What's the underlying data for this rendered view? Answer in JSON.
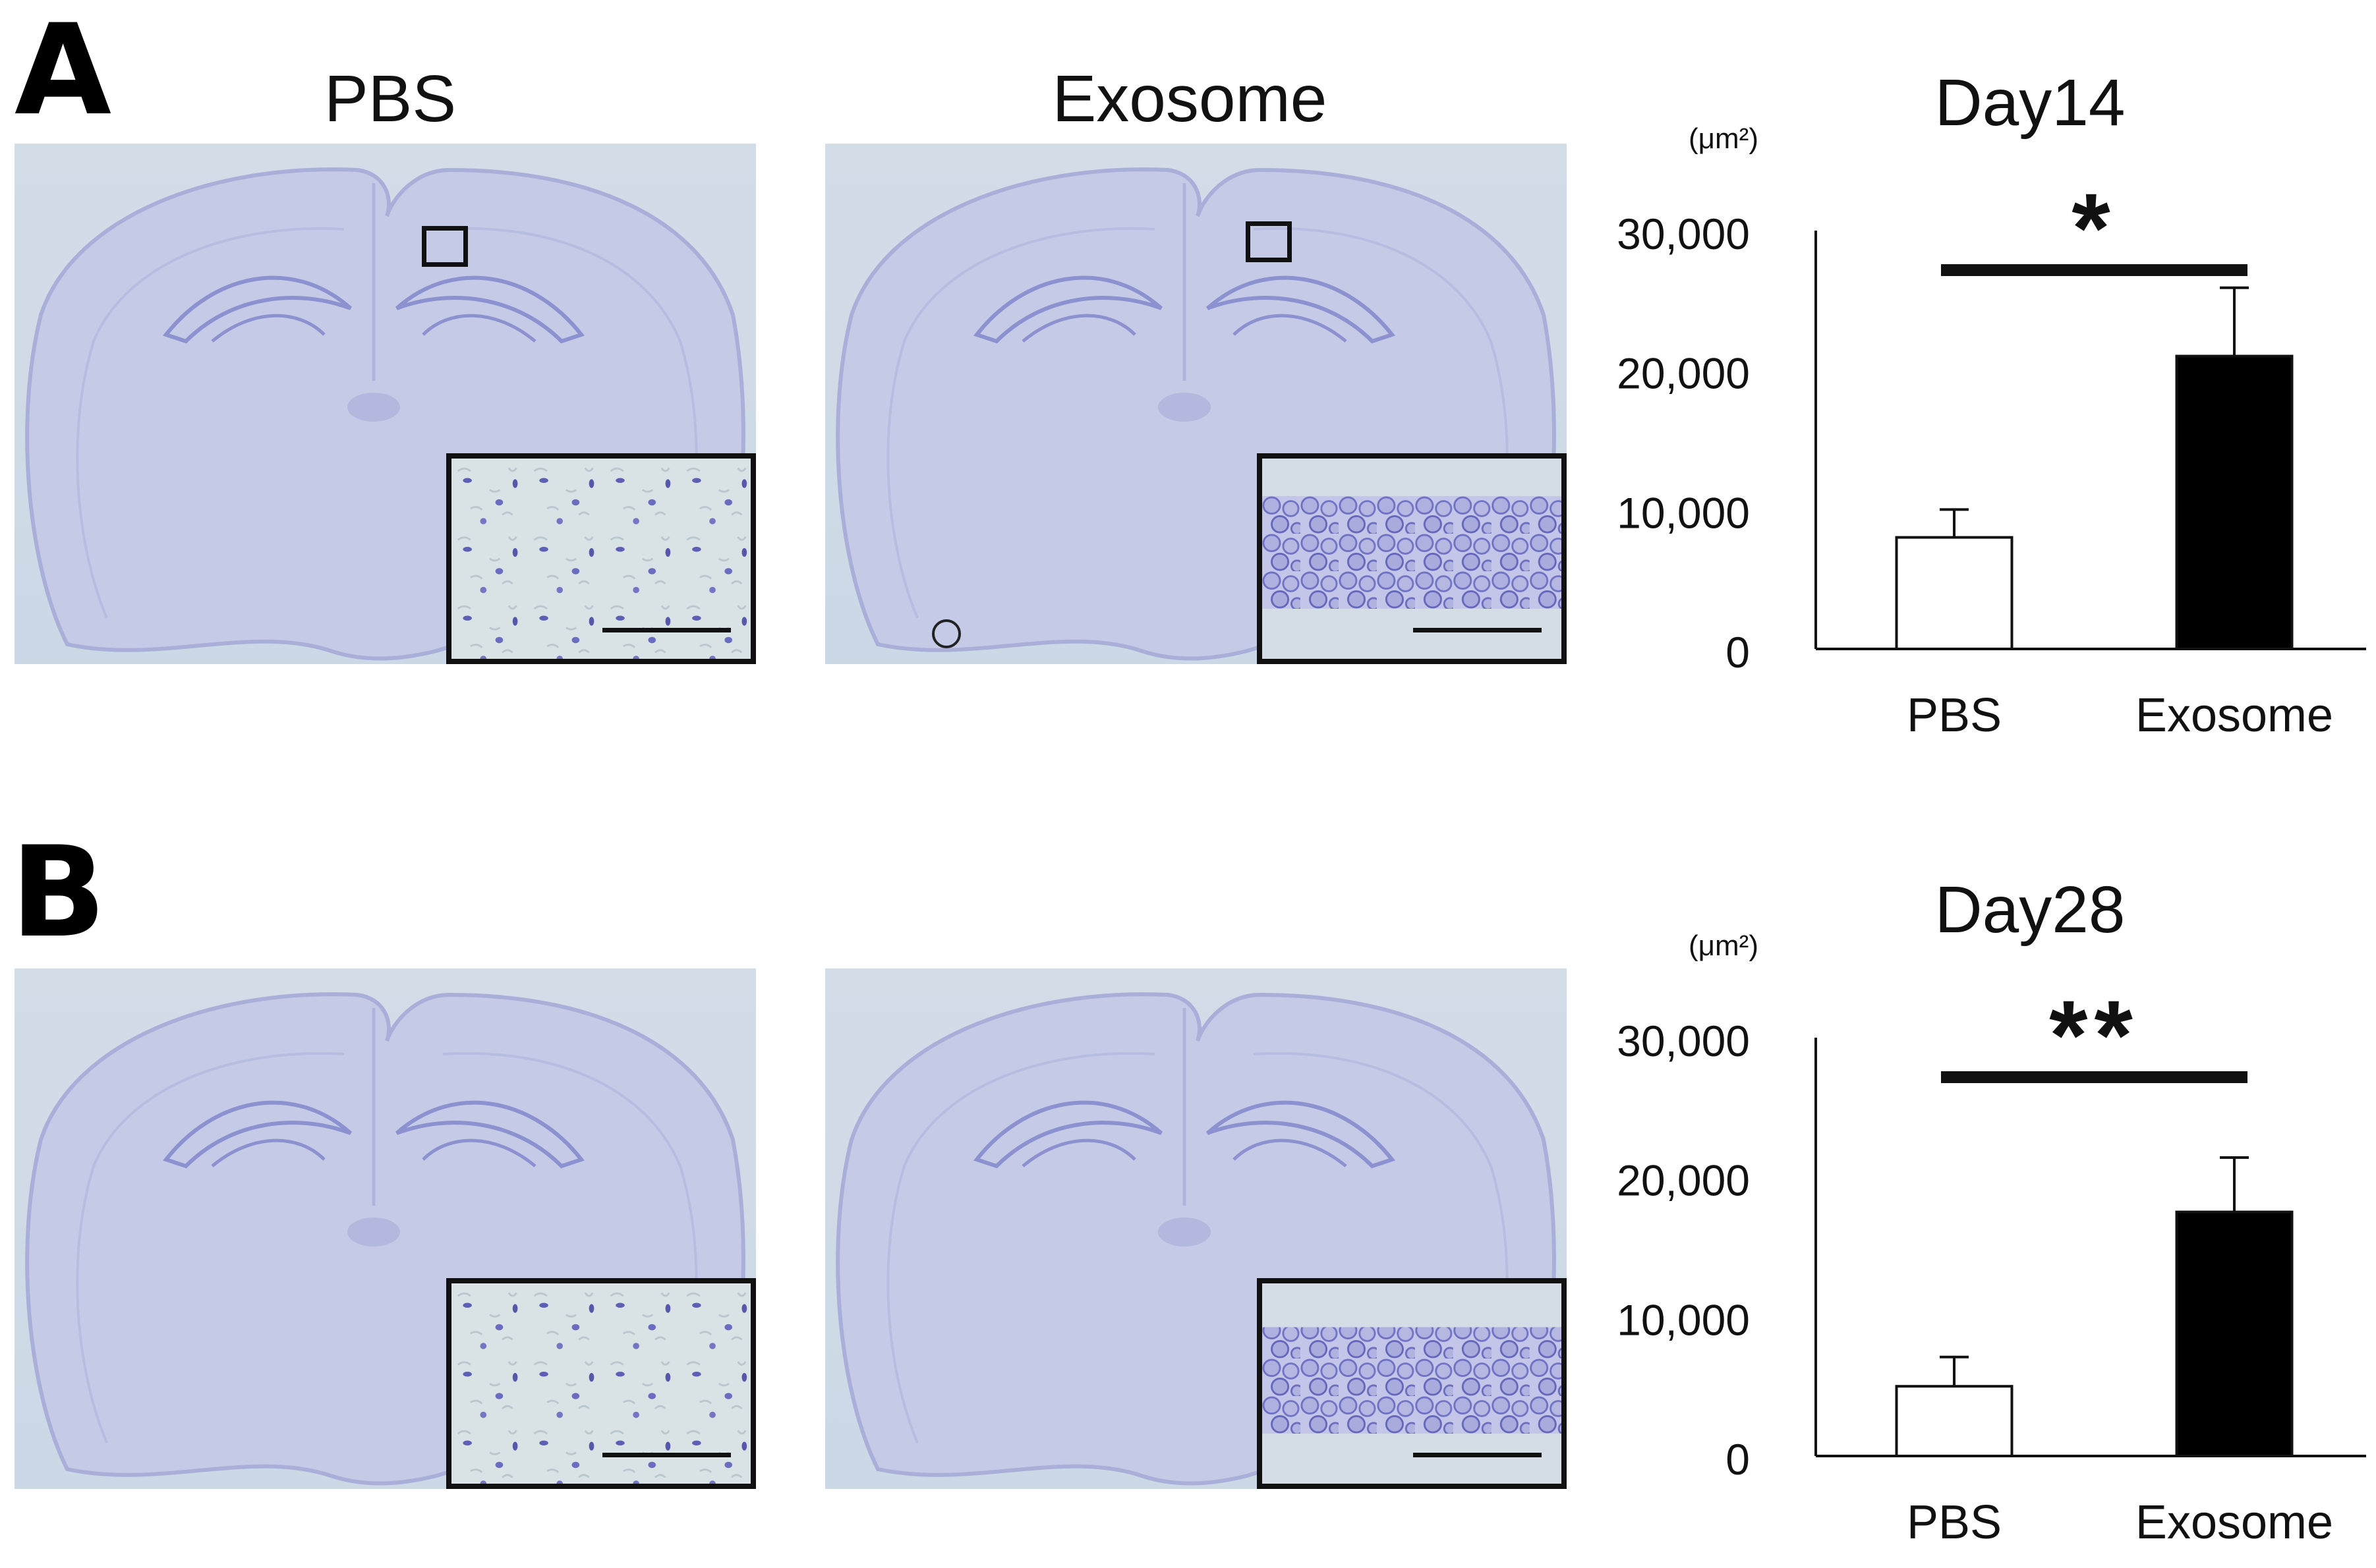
{
  "panels": [
    {
      "letter": "A",
      "col_titles": [
        "PBS",
        "Exosome"
      ],
      "images": [
        {
          "name": "PBS",
          "inset": "sparse scattered cells"
        },
        {
          "name": "Exosome",
          "inset": "dense pyramidal cell layer"
        }
      ]
    },
    {
      "letter": "B",
      "images": [
        {
          "name": "PBS",
          "inset": "sparse scattered cells"
        },
        {
          "name": "Exosome",
          "inset": "dense pyramidal cell layer"
        }
      ]
    }
  ],
  "chart_data": [
    {
      "type": "bar",
      "title": "Day14",
      "unit_label": "(μm²)",
      "categories": [
        "PBS",
        "Exosome"
      ],
      "values": [
        8000,
        21000
      ],
      "errors": [
        2000,
        4900
      ],
      "bar_colors": [
        "#ffffff",
        "#000000"
      ],
      "ylim": [
        0,
        30000
      ],
      "yticks": [
        "0",
        "10,000",
        "20,000",
        "30,000"
      ],
      "ytick_values": [
        0,
        10000,
        20000,
        30000
      ],
      "significance": "*",
      "grid": false
    },
    {
      "type": "bar",
      "title": "Day28",
      "unit_label": "(μm²)",
      "categories": [
        "PBS",
        "Exosome"
      ],
      "values": [
        5000,
        17500
      ],
      "errors": [
        2100,
        3900
      ],
      "bar_colors": [
        "#ffffff",
        "#000000"
      ],
      "ylim": [
        0,
        30000
      ],
      "yticks": [
        "0",
        "10,000",
        "20,000",
        "30,000"
      ],
      "ytick_values": [
        0,
        10000,
        20000,
        30000
      ],
      "significance": "**",
      "grid": false
    }
  ]
}
